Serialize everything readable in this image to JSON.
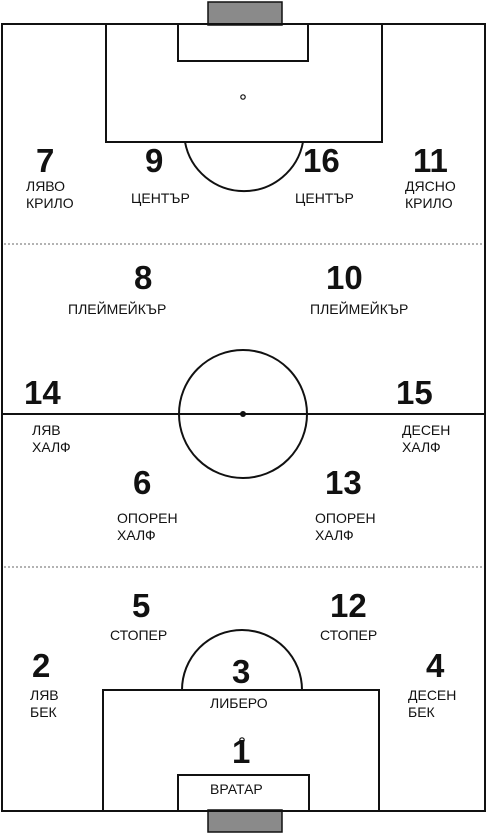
{
  "players": [
    {
      "id": "p7",
      "number": "7",
      "role": [
        "ЛЯВО",
        "КРИЛО"
      ]
    },
    {
      "id": "p9",
      "number": "9",
      "role": [
        "ЦЕНТЪР"
      ]
    },
    {
      "id": "p16",
      "number": "16",
      "role": [
        "ЦЕНТЪР"
      ]
    },
    {
      "id": "p11",
      "number": "11",
      "role": [
        "ДЯСНО",
        "КРИЛО"
      ]
    },
    {
      "id": "p8",
      "number": "8",
      "role": [
        "ПЛЕЙМЕЙКЪР"
      ]
    },
    {
      "id": "p10",
      "number": "10",
      "role": [
        "ПЛЕЙМЕЙКЪР"
      ]
    },
    {
      "id": "p14",
      "number": "14",
      "role": [
        "ЛЯВ",
        "ХАЛФ"
      ]
    },
    {
      "id": "p15",
      "number": "15",
      "role": [
        "ДЕСЕН",
        "ХАЛФ"
      ]
    },
    {
      "id": "p6",
      "number": "6",
      "role": [
        "ОПОРЕН",
        "ХАЛФ"
      ]
    },
    {
      "id": "p13",
      "number": "13",
      "role": [
        "ОПОРЕН",
        "ХАЛФ"
      ]
    },
    {
      "id": "p5",
      "number": "5",
      "role": [
        "СТОПЕР"
      ]
    },
    {
      "id": "p12",
      "number": "12",
      "role": [
        "СТОПЕР"
      ]
    },
    {
      "id": "p2",
      "number": "2",
      "role": [
        "ЛЯВ",
        "БЕК"
      ]
    },
    {
      "id": "p3",
      "number": "3",
      "role": [
        "ЛИБЕРО"
      ]
    },
    {
      "id": "p4",
      "number": "4",
      "role": [
        "ДЕСЕН",
        "БЕК"
      ]
    },
    {
      "id": "p1",
      "number": "1",
      "role": [
        "ВРАТАР"
      ]
    }
  ],
  "colors": {
    "line": "#111111",
    "zone_line": "#9a9a9a",
    "goal": "#8a8a8a"
  }
}
